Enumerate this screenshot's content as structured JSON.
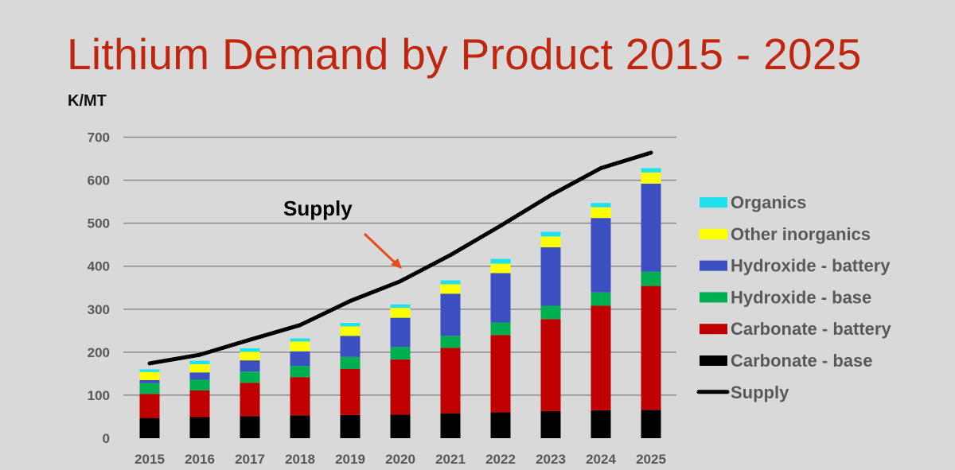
{
  "chart_data": {
    "type": "bar",
    "stacked": true,
    "title": "Lithium Demand by Product 2015 - 2025",
    "ylabel": "K/MT",
    "xlabel": "",
    "ylim": [
      0,
      700
    ],
    "yticks": [
      0,
      100,
      200,
      300,
      400,
      500,
      600,
      700
    ],
    "grid": true,
    "legend_position": "right",
    "categories": [
      "2015",
      "2016",
      "2017",
      "2018",
      "2019",
      "2020",
      "2021",
      "2022",
      "2023",
      "2024",
      "2025"
    ],
    "series": [
      {
        "name": "Carbonate - base",
        "color": "#000000",
        "values": [
          47,
          49,
          51,
          53,
          54,
          55,
          58,
          60,
          63,
          65,
          66
        ]
      },
      {
        "name": "Carbonate - battery",
        "color": "#c00000",
        "values": [
          56,
          62,
          78,
          89,
          107,
          128,
          152,
          180,
          214,
          243,
          288
        ]
      },
      {
        "name": "Hydroxide - base",
        "color": "#00b050",
        "values": [
          25,
          25,
          26,
          26,
          28,
          29,
          28,
          29,
          31,
          31,
          33
        ]
      },
      {
        "name": "Hydroxide - battery",
        "color": "#3b4fc1",
        "values": [
          7,
          17,
          26,
          34,
          49,
          68,
          98,
          115,
          136,
          173,
          205
        ]
      },
      {
        "name": "Other inorganics",
        "color": "#ffff00",
        "values": [
          19,
          19,
          20,
          23,
          22,
          23,
          22,
          22,
          25,
          25,
          26
        ]
      },
      {
        "name": "Organics",
        "color": "#1fe0ee",
        "values": [
          6,
          8,
          8,
          7,
          8,
          8,
          9,
          11,
          11,
          10,
          10
        ]
      }
    ],
    "line_series": {
      "name": "Supply",
      "type": "line",
      "color": "#000000",
      "values": [
        174,
        194,
        229,
        263,
        319,
        365,
        426,
        494,
        565,
        628,
        664
      ]
    },
    "annotation": {
      "text": "Supply",
      "arrow_color": "#e84a1e"
    }
  }
}
